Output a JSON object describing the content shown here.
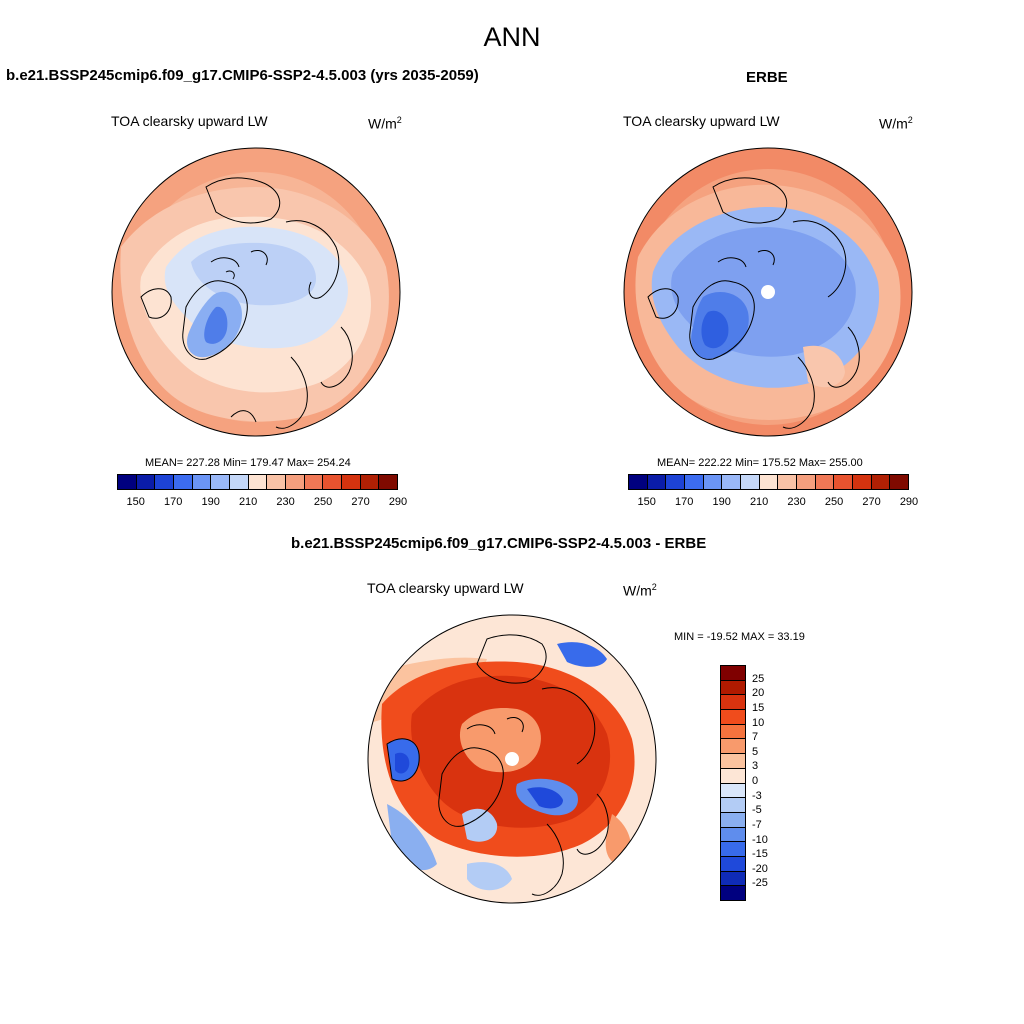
{
  "title": "ANN",
  "panels": [
    {
      "title": "b.e21.BSSP245cmip6.f09_g17.CMIP6-SSP2-4.5.003 (yrs 2035-2059)",
      "variable": "TOA clearsky upward LW",
      "units_base": "W/m",
      "units_exp": "2",
      "stats_text": "MEAN= 227.28  Min= 179.47  Max= 254.24",
      "mean": 227.28,
      "min": 179.47,
      "max": 254.24
    },
    {
      "title": "ERBE",
      "variable": "TOA clearsky upward LW",
      "units_base": "W/m",
      "units_exp": "2",
      "stats_text": "MEAN= 222.22  Min= 175.52  Max= 255.00",
      "mean": 222.22,
      "min": 175.52,
      "max": 255.0
    },
    {
      "title": "b.e21.BSSP245cmip6.f09_g17.CMIP6-SSP2-4.5.003 - ERBE",
      "variable": "TOA clearsky upward LW",
      "units_base": "W/m",
      "units_exp": "2",
      "stats_text": "MIN = -19.52 MAX =  33.19",
      "min": -19.52,
      "max": 33.19
    }
  ],
  "abs_colorbar": {
    "colors": [
      "#00007f",
      "#0a1ca8",
      "#1d43d6",
      "#3c6cf0",
      "#6b95f6",
      "#9ab8f8",
      "#c4d7f8",
      "#fde3d2",
      "#f9c2a6",
      "#f59f7e",
      "#f07856",
      "#e8532f",
      "#d4330f",
      "#b02004",
      "#7f0a00"
    ],
    "tick_labels": [
      "150",
      "170",
      "190",
      "210",
      "230",
      "250",
      "270",
      "290"
    ]
  },
  "diff_colorbar": {
    "colors": [
      "#7f0000",
      "#b01a00",
      "#d9330f",
      "#f04c1c",
      "#f5733e",
      "#f89a6c",
      "#fbc39f",
      "#fde6d6",
      "#d9e6fa",
      "#b3ccf5",
      "#8aaff0",
      "#5f8ded",
      "#386beb",
      "#1f49da",
      "#0f2bb7",
      "#00007f"
    ],
    "tick_labels": [
      "25",
      "20",
      "15",
      "10",
      "7",
      "5",
      "3",
      "0",
      "-3",
      "-5",
      "-7",
      "-10",
      "-15",
      "-20",
      "-25"
    ]
  }
}
